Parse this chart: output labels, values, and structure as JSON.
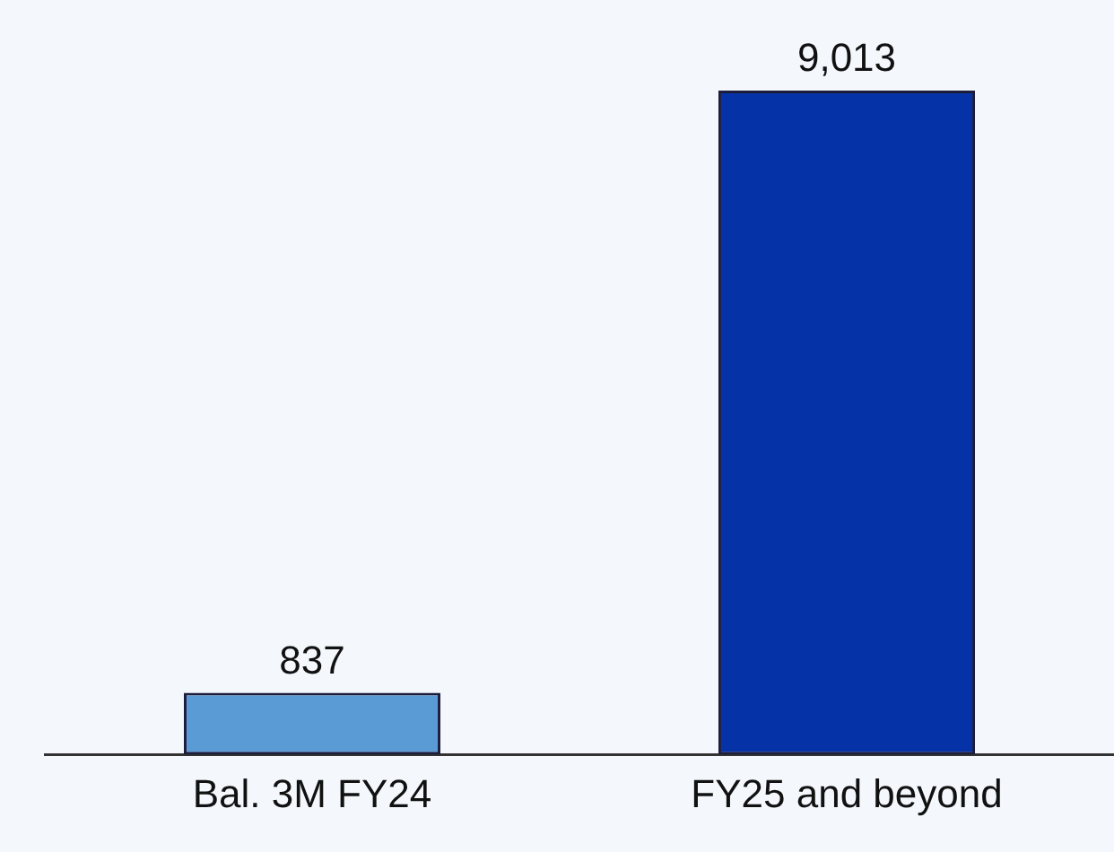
{
  "chart_data": {
    "type": "bar",
    "categories": [
      "Bal. 3M FY24",
      "FY25 and beyond"
    ],
    "values": [
      837,
      9013
    ],
    "colors": [
      "#5b9bd5",
      "#0632a8"
    ],
    "value_labels": [
      "837",
      "9,013"
    ],
    "grid": false,
    "legend": false,
    "tick_labels": "x"
  }
}
